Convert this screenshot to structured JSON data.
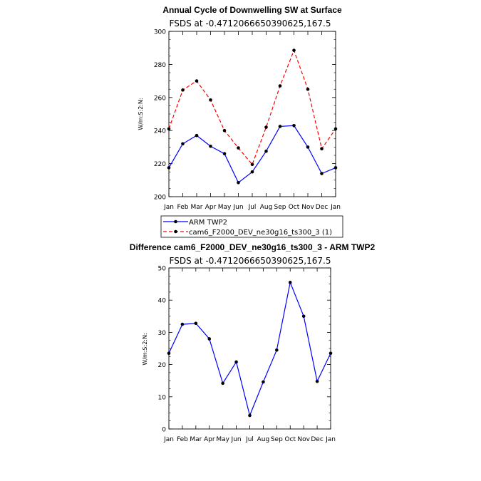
{
  "chart_data": [
    {
      "type": "line",
      "title": "Annual Cycle of Downwelling SW at Surface",
      "subtitle": "FSDS at -0.4712066650390625,167.5",
      "xlabel": "",
      "ylabel": "W/m:S:2:N:",
      "categories": [
        "Jan",
        "Feb",
        "Mar",
        "Apr",
        "May",
        "Jun",
        "Jul",
        "Aug",
        "Sep",
        "Oct",
        "Nov",
        "Dec",
        "Jan"
      ],
      "ylim": [
        200,
        300
      ],
      "yticks": [
        200,
        220,
        240,
        260,
        280,
        300
      ],
      "grid": false,
      "legend_position": "bottom",
      "series": [
        {
          "name": "ARM TWP2",
          "color": "#0000ff",
          "dash": "solid",
          "values": [
            217.5,
            232,
            237,
            230.5,
            226,
            208.5,
            215,
            227.5,
            242.5,
            243,
            230,
            214,
            217.5
          ]
        },
        {
          "name": "cam6_F2000_DEV_ne30g16_ts300_3 (1)",
          "color": "#ff0000",
          "dash": "dashed",
          "values": [
            241,
            264.5,
            270,
            258.5,
            240,
            229.5,
            219.5,
            242,
            267,
            288.5,
            265,
            229,
            241
          ]
        }
      ]
    },
    {
      "type": "line",
      "title": "Difference cam6_F2000_DEV_ne30g16_ts300_3 - ARM TWP2",
      "subtitle": "FSDS at -0.4712066650390625,167.5",
      "xlabel": "",
      "ylabel": "W/m:S:2:N:",
      "categories": [
        "Jan",
        "Feb",
        "Mar",
        "Apr",
        "May",
        "Jun",
        "Jul",
        "Aug",
        "Sep",
        "Oct",
        "Nov",
        "Dec",
        "Jan"
      ],
      "ylim": [
        0,
        50
      ],
      "yticks": [
        0,
        10,
        20,
        30,
        40,
        50
      ],
      "grid": false,
      "series": [
        {
          "color": "#0000ff",
          "dash": "solid",
          "values": [
            23.5,
            32.5,
            32.8,
            28,
            14.2,
            20.8,
            4.2,
            14.6,
            24.5,
            45.5,
            35,
            14.8,
            23.5
          ]
        }
      ]
    }
  ]
}
